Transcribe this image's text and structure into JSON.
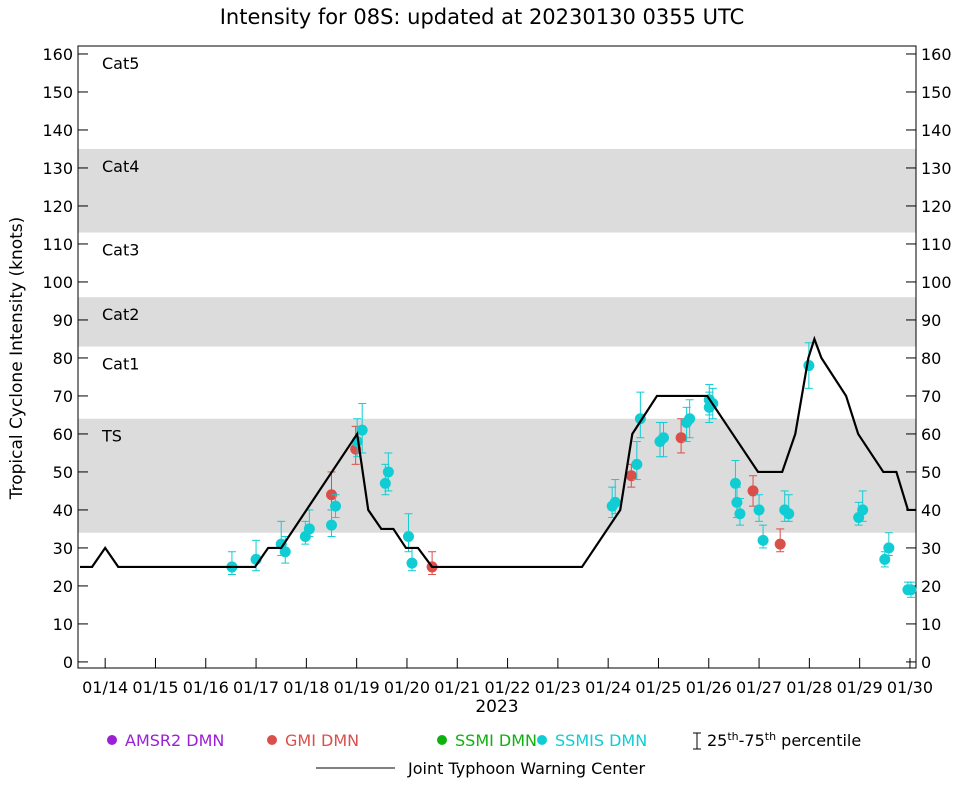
{
  "chart_data": {
    "type": "scatter",
    "title": "Intensity for 08S: updated at 20230130 0355 UTC",
    "ylabel": "Tropical Cyclone Intensity (knots)",
    "xlabel": "2023",
    "xlim": [
      13.46,
      30.12
    ],
    "ylim": [
      -1.6,
      162.1
    ],
    "xticks": [
      {
        "value": 14,
        "label": "01/14"
      },
      {
        "value": 15,
        "label": "01/15"
      },
      {
        "value": 16,
        "label": "01/16"
      },
      {
        "value": 17,
        "label": "01/17"
      },
      {
        "value": 18,
        "label": "01/18"
      },
      {
        "value": 19,
        "label": "01/19"
      },
      {
        "value": 20,
        "label": "01/20"
      },
      {
        "value": 21,
        "label": "01/21"
      },
      {
        "value": 22,
        "label": "01/22"
      },
      {
        "value": 23,
        "label": "01/23"
      },
      {
        "value": 24,
        "label": "01/24"
      },
      {
        "value": 25,
        "label": "01/25"
      },
      {
        "value": 26,
        "label": "01/26"
      },
      {
        "value": 27,
        "label": "01/27"
      },
      {
        "value": 28,
        "label": "01/28"
      },
      {
        "value": 29,
        "label": "01/29"
      },
      {
        "value": 30,
        "label": "01/30"
      }
    ],
    "yticks": [
      0,
      10,
      20,
      30,
      40,
      50,
      60,
      70,
      80,
      90,
      100,
      110,
      120,
      130,
      140,
      150,
      160
    ],
    "y2ticks": [
      0,
      10,
      20,
      30,
      40,
      50,
      60,
      70,
      80,
      90,
      100,
      110,
      120,
      130,
      140,
      150,
      160
    ],
    "bands": [
      {
        "label": "TS",
        "from": 34,
        "shaded": true
      },
      {
        "label": "Cat1",
        "from": 64,
        "shaded": false
      },
      {
        "label": "Cat2",
        "from": 83,
        "shaded": true
      },
      {
        "label": "Cat3",
        "from": 96,
        "shaded": false
      },
      {
        "label": "Cat4",
        "from": 113,
        "shaded": true
      },
      {
        "label": "Cat5",
        "from": 135,
        "shaded": false
      }
    ],
    "band_color": "#dcdcdc",
    "percentile_label": [
      "25",
      "th",
      "-75",
      "th",
      " percentile"
    ],
    "series": [
      {
        "name": "AMSR2 DMN",
        "color": "#9b1fd6",
        "x": [],
        "values": [],
        "low": [],
        "high": []
      },
      {
        "name": "GMI DMN",
        "color": "#d9504a",
        "x": [
          18.5,
          18.98,
          20.5,
          24.46,
          25.45,
          26.88,
          27.42
        ],
        "values": [
          44,
          56,
          25,
          49,
          59,
          45,
          31
        ],
        "low": [
          40,
          52,
          23,
          46,
          55,
          41,
          29
        ],
        "high": [
          50,
          62,
          29,
          52,
          64,
          49,
          35
        ]
      },
      {
        "name": "SSMI DMN",
        "color": "#10b010",
        "x": [],
        "values": [],
        "low": [],
        "high": []
      },
      {
        "name": "SSMIS DMN",
        "color": "#10cdd4",
        "x": [
          16.52,
          17.0,
          17.5,
          17.58,
          17.98,
          18.06,
          18.5,
          18.58,
          19.01,
          19.11,
          19.57,
          19.63,
          20.03,
          20.1,
          24.08,
          24.14,
          24.57,
          24.64,
          25.03,
          25.1,
          25.56,
          25.62,
          26.01,
          26.01,
          26.08,
          26.53,
          26.56,
          26.62,
          27.0,
          27.08,
          27.51,
          27.59,
          27.99,
          28.98,
          29.06,
          29.5,
          29.58,
          29.96,
          30.02
        ],
        "values": [
          25,
          27,
          31,
          29,
          33,
          35,
          36,
          41,
          58,
          61,
          47,
          50,
          33,
          26,
          41,
          42,
          52,
          64,
          58,
          59,
          63,
          64,
          69,
          67,
          68,
          47,
          42,
          39,
          40,
          32,
          40,
          39,
          78,
          38,
          40,
          27,
          30,
          19,
          19
        ],
        "low": [
          23,
          24,
          28,
          26,
          31,
          33,
          33,
          38,
          54,
          55,
          44,
          45,
          29,
          24,
          38,
          39,
          48,
          59,
          54,
          54,
          58,
          59,
          65,
          63,
          64,
          42,
          38,
          36,
          37,
          30,
          37,
          37,
          72,
          36,
          37,
          25,
          28,
          18,
          17
        ],
        "high": [
          29,
          32,
          37,
          33,
          37,
          40,
          40,
          44,
          64,
          68,
          52,
          55,
          39,
          30,
          46,
          48,
          58,
          71,
          63,
          63,
          67,
          69,
          73,
          71,
          72,
          53,
          46,
          43,
          44,
          36,
          45,
          44,
          84,
          42,
          45,
          29,
          34,
          21,
          21
        ]
      },
      {
        "name": "Joint Typhoon Warning Center",
        "color": "#000000",
        "line": true,
        "x": [
          13.5,
          13.74,
          14,
          14.26,
          16.98,
          17.24,
          17.5,
          19.01,
          19.23,
          19.49,
          19.73,
          19.98,
          20.22,
          20.5,
          23.48,
          24.24,
          24.48,
          24.97,
          25.97,
          26.98,
          27.46,
          27.72,
          27.98,
          28.1,
          28.24,
          28.73,
          28.97,
          29.47,
          29.73,
          29.96,
          30.12
        ],
        "values": [
          25,
          25,
          30,
          25,
          25,
          30,
          30,
          60,
          40,
          35,
          35,
          30,
          30,
          25,
          25,
          40,
          60,
          70,
          70,
          50,
          50,
          60,
          80,
          85,
          80,
          70,
          60,
          50,
          50,
          40,
          40
        ]
      }
    ]
  }
}
